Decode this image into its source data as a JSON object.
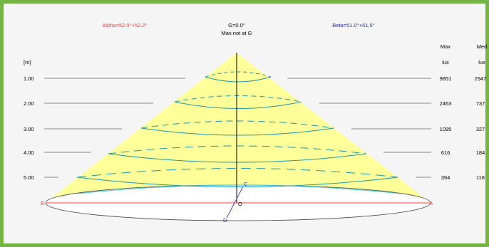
{
  "header": {
    "alpha": "Alpha=52.0°+52.2°",
    "beta": "Beta=51.0°+51.5°",
    "gamma": "G=0.0°",
    "max_note": "Max not at G"
  },
  "distance_unit": "[m]",
  "columns": {
    "max_label": "Max",
    "med_label": "Med",
    "max_unit": "lux",
    "med_unit": "lux"
  },
  "rows": [
    {
      "distance": "1.00",
      "max": "9851",
      "med": "2947"
    },
    {
      "distance": "2.00",
      "max": "2463",
      "med": "737"
    },
    {
      "distance": "3.00",
      "max": "1095",
      "med": "327"
    },
    {
      "distance": "4.00",
      "max": "616",
      "med": "184"
    },
    {
      "distance": "5.00",
      "max": "394",
      "med": "118"
    }
  ],
  "points": {
    "A": "A",
    "B": "B",
    "C": "C",
    "D": "D",
    "O": "O"
  },
  "colors": {
    "frame": "#74b443",
    "background": "#f5f5f5",
    "cone": "#ffff99",
    "contour": "#1a9aa8",
    "axis_ab": "#ff3b3b",
    "axis_cd": "#4a48d0",
    "alpha_text": "#ff3b3b",
    "beta_text": "#2a28c8"
  }
}
